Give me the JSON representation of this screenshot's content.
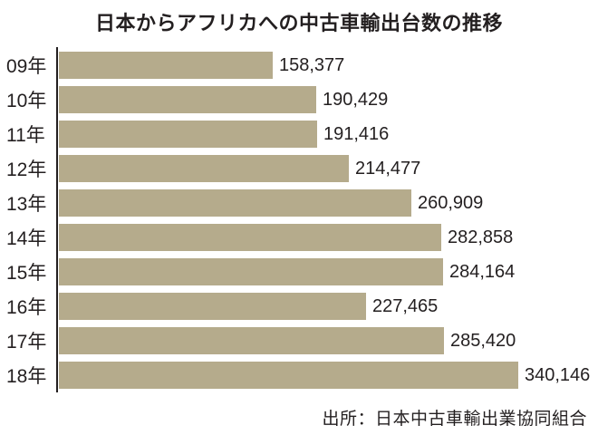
{
  "title": "日本からアフリカへの中古車輸出台数の推移",
  "source": "出所：日本中古車輸出業協同組合",
  "colors": {
    "bar": "#b5ab8c",
    "text": "#231f20",
    "axis": "#231f20",
    "background": "#ffffff"
  },
  "chart_data": {
    "type": "bar",
    "orientation": "horizontal",
    "title": "日本からアフリカへの中古車輸出台数の推移",
    "xlabel": "",
    "ylabel": "",
    "categories": [
      "09年",
      "10年",
      "11年",
      "12年",
      "13年",
      "14年",
      "15年",
      "16年",
      "17年",
      "18年"
    ],
    "values": [
      158377,
      190429,
      191416,
      214477,
      260909,
      282858,
      284164,
      227465,
      285420,
      340146
    ],
    "value_labels": [
      "158,377",
      "190,429",
      "191,416",
      "214,477",
      "260,909",
      "282,858",
      "284,164",
      "227,465",
      "285,420",
      "340,146"
    ],
    "xlim": [
      0,
      340146
    ],
    "grid": false,
    "legend": false,
    "source_note": "出所：日本中古車輸出業協同組合"
  }
}
